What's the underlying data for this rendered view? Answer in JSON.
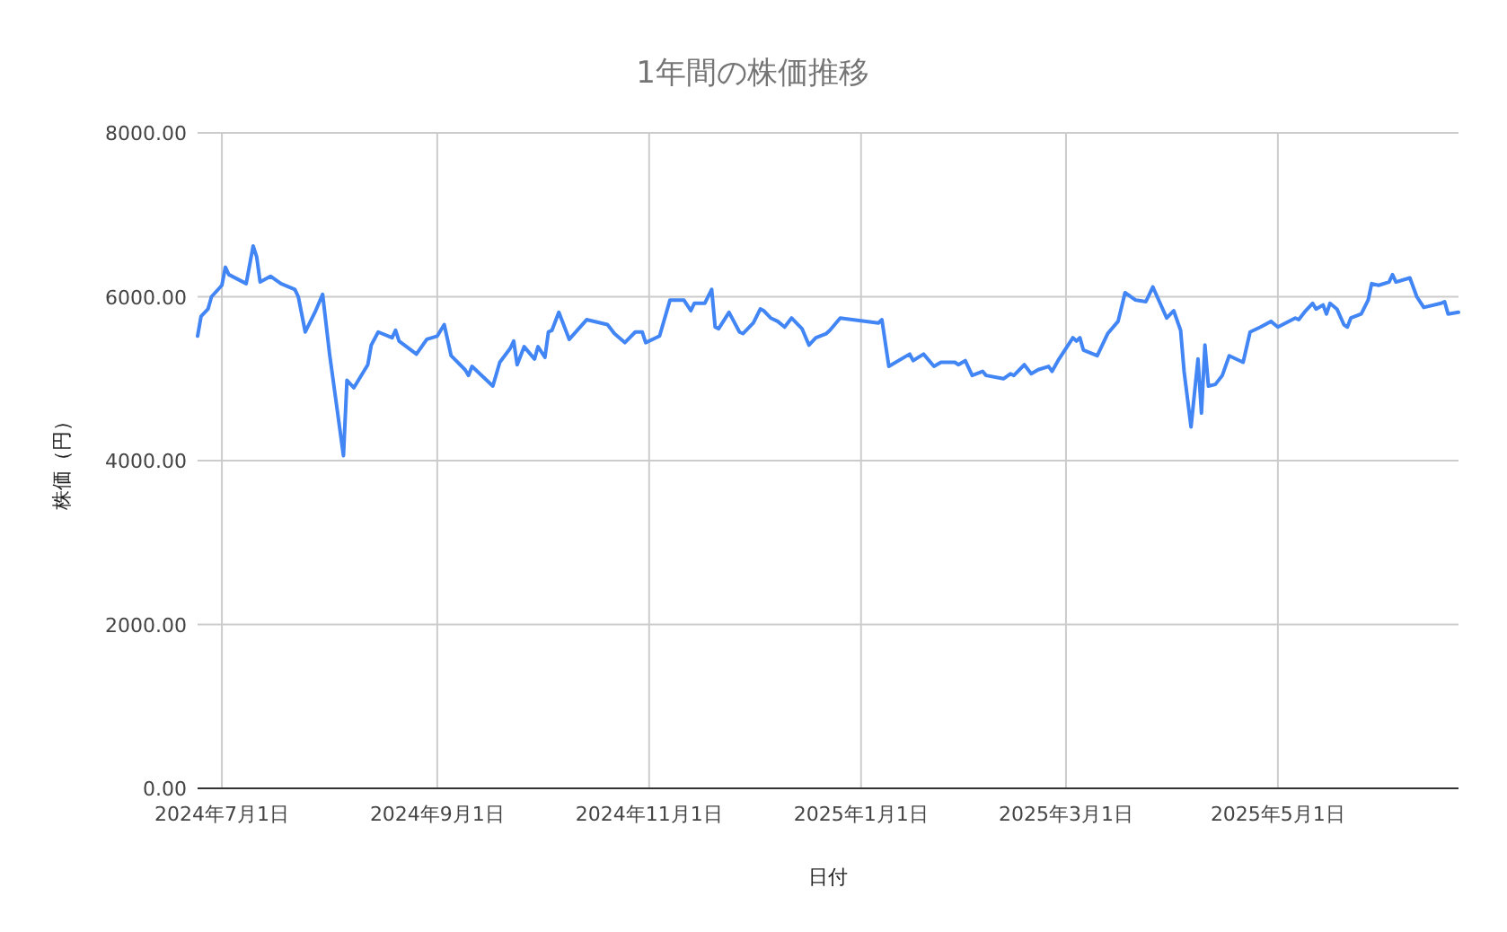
{
  "chart_data": {
    "type": "line",
    "title": "1年間の株価推移",
    "xlabel": "日付",
    "ylabel": "株価（円）",
    "grid": true,
    "xlim": [
      "2024-06-24",
      "2025-06-22"
    ],
    "xticks": [
      {
        "value": "2024-07-01",
        "label": "2024年7月1日"
      },
      {
        "value": "2024-09-01",
        "label": "2024年9月1日"
      },
      {
        "value": "2024-11-01",
        "label": "2024年11月1日"
      },
      {
        "value": "2025-01-01",
        "label": "2025年1月1日"
      },
      {
        "value": "2025-03-01",
        "label": "2025年3月1日"
      },
      {
        "value": "2025-05-01",
        "label": "2025年5月1日"
      }
    ],
    "ylim": [
      0,
      8000
    ],
    "yticks": [
      {
        "value": 0,
        "label": "0.00"
      },
      {
        "value": 2000,
        "label": "2000.00"
      },
      {
        "value": 4000,
        "label": "4000.00"
      },
      {
        "value": 6000,
        "label": "6000.00"
      },
      {
        "value": 8000,
        "label": "8000.00"
      }
    ],
    "x": [
      "2024-06-24",
      "2024-06-25",
      "2024-06-27",
      "2024-06-28",
      "2024-07-01",
      "2024-07-02",
      "2024-07-03",
      "2024-07-08",
      "2024-07-10",
      "2024-07-11",
      "2024-07-12",
      "2024-07-15",
      "2024-07-18",
      "2024-07-22",
      "2024-07-23",
      "2024-07-25",
      "2024-07-28",
      "2024-07-30",
      "2024-08-01",
      "2024-08-05",
      "2024-08-06",
      "2024-08-08",
      "2024-08-12",
      "2024-08-13",
      "2024-08-15",
      "2024-08-19",
      "2024-08-20",
      "2024-08-21",
      "2024-08-26",
      "2024-08-29",
      "2024-09-01",
      "2024-09-03",
      "2024-09-05",
      "2024-09-09",
      "2024-09-10",
      "2024-09-11",
      "2024-09-17",
      "2024-09-19",
      "2024-09-22",
      "2024-09-23",
      "2024-09-24",
      "2024-09-26",
      "2024-09-29",
      "2024-09-30",
      "2024-10-02",
      "2024-10-03",
      "2024-10-04",
      "2024-10-06",
      "2024-10-09",
      "2024-10-14",
      "2024-10-20",
      "2024-10-22",
      "2024-10-25",
      "2024-10-28",
      "2024-10-30",
      "2024-10-31",
      "2024-11-04",
      "2024-11-07",
      "2024-11-11",
      "2024-11-13",
      "2024-11-14",
      "2024-11-17",
      "2024-11-19",
      "2024-11-20",
      "2024-11-21",
      "2024-11-24",
      "2024-11-27",
      "2024-11-28",
      "2024-12-01",
      "2024-12-03",
      "2024-12-04",
      "2024-12-06",
      "2024-12-08",
      "2024-12-10",
      "2024-12-12",
      "2024-12-15",
      "2024-12-17",
      "2024-12-19",
      "2024-12-22",
      "2024-12-23",
      "2024-12-26",
      "2025-01-06",
      "2025-01-07",
      "2025-01-09",
      "2025-01-15",
      "2025-01-16",
      "2025-01-19",
      "2025-01-22",
      "2025-01-24",
      "2025-01-28",
      "2025-01-29",
      "2025-01-31",
      "2025-02-02",
      "2025-02-05",
      "2025-02-06",
      "2025-02-11",
      "2025-02-13",
      "2025-02-14",
      "2025-02-17",
      "2025-02-19",
      "2025-02-21",
      "2025-02-24",
      "2025-02-25",
      "2025-02-27",
      "2025-03-03",
      "2025-03-04",
      "2025-03-05",
      "2025-03-06",
      "2025-03-10",
      "2025-03-13",
      "2025-03-16",
      "2025-03-18",
      "2025-03-21",
      "2025-03-24",
      "2025-03-26",
      "2025-03-30",
      "2025-04-01",
      "2025-04-03",
      "2025-04-04",
      "2025-04-06",
      "2025-04-08",
      "2025-04-09",
      "2025-04-10",
      "2025-04-11",
      "2025-04-13",
      "2025-04-15",
      "2025-04-17",
      "2025-04-21",
      "2025-04-23",
      "2025-04-26",
      "2025-04-29",
      "2025-05-01",
      "2025-05-06",
      "2025-05-07",
      "2025-05-09",
      "2025-05-11",
      "2025-05-12",
      "2025-05-14",
      "2025-05-15",
      "2025-05-16",
      "2025-05-18",
      "2025-05-20",
      "2025-05-21",
      "2025-05-22",
      "2025-05-25",
      "2025-05-27",
      "2025-05-28",
      "2025-05-30",
      "2025-06-02",
      "2025-06-03",
      "2025-06-04",
      "2025-06-08",
      "2025-06-10",
      "2025-06-12",
      "2025-06-17",
      "2025-06-18",
      "2025-06-19",
      "2025-06-22"
    ],
    "series": [
      {
        "color": "#4285f4",
        "values": [
          5520,
          5760,
          5850,
          6000,
          6140,
          6360,
          6270,
          6160,
          6620,
          6490,
          6180,
          6250,
          6160,
          6090,
          6000,
          5570,
          5830,
          6030,
          5300,
          4060,
          4980,
          4890,
          5170,
          5410,
          5570,
          5500,
          5590,
          5460,
          5300,
          5480,
          5520,
          5660,
          5280,
          5110,
          5040,
          5150,
          4910,
          5200,
          5370,
          5460,
          5170,
          5390,
          5240,
          5390,
          5260,
          5570,
          5590,
          5810,
          5480,
          5720,
          5660,
          5550,
          5440,
          5570,
          5570,
          5440,
          5520,
          5960,
          5960,
          5830,
          5920,
          5920,
          6090,
          5630,
          5610,
          5810,
          5570,
          5550,
          5680,
          5850,
          5830,
          5740,
          5700,
          5630,
          5740,
          5610,
          5410,
          5500,
          5550,
          5590,
          5740,
          5680,
          5720,
          5150,
          5300,
          5220,
          5300,
          5150,
          5200,
          5200,
          5170,
          5220,
          5040,
          5090,
          5040,
          5000,
          5060,
          5040,
          5170,
          5060,
          5110,
          5150,
          5090,
          5240,
          5500,
          5460,
          5500,
          5350,
          5280,
          5550,
          5700,
          6050,
          5960,
          5940,
          6120,
          5740,
          5830,
          5590,
          5090,
          4410,
          5240,
          4580,
          5410,
          4910,
          4930,
          5040,
          5280,
          5200,
          5570,
          5630,
          5700,
          5630,
          5740,
          5720,
          5830,
          5920,
          5850,
          5900,
          5790,
          5920,
          5850,
          5660,
          5630,
          5740,
          5790,
          5960,
          6160,
          6140,
          6180,
          6270,
          6180,
          6230,
          6000,
          5870,
          5920,
          5940,
          5790,
          5810
        ]
      }
    ]
  }
}
